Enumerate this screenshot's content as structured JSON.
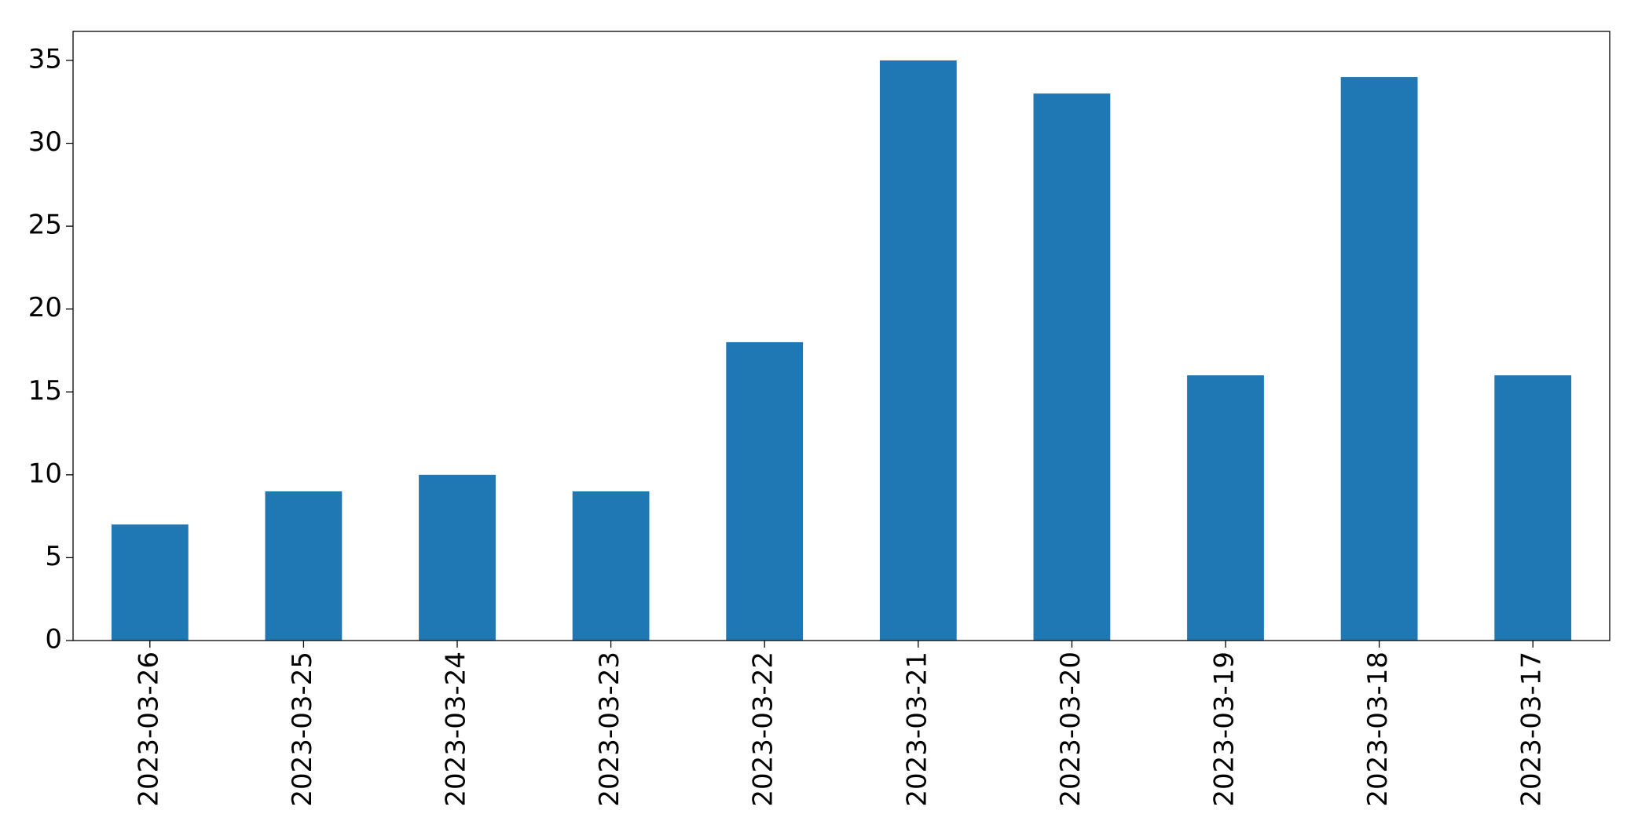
{
  "chart_data": {
    "type": "bar",
    "categories": [
      "2023-03-26",
      "2023-03-25",
      "2023-03-24",
      "2023-03-23",
      "2023-03-22",
      "2023-03-21",
      "2023-03-20",
      "2023-03-19",
      "2023-03-18",
      "2023-03-17"
    ],
    "values": [
      7,
      9,
      10,
      9,
      18,
      35,
      33,
      16,
      34,
      16
    ],
    "color": "#1f77b4",
    "ylim": [
      0,
      36.75
    ],
    "yticks": [
      0,
      5,
      10,
      15,
      20,
      25,
      30,
      35
    ],
    "grid": false
  }
}
